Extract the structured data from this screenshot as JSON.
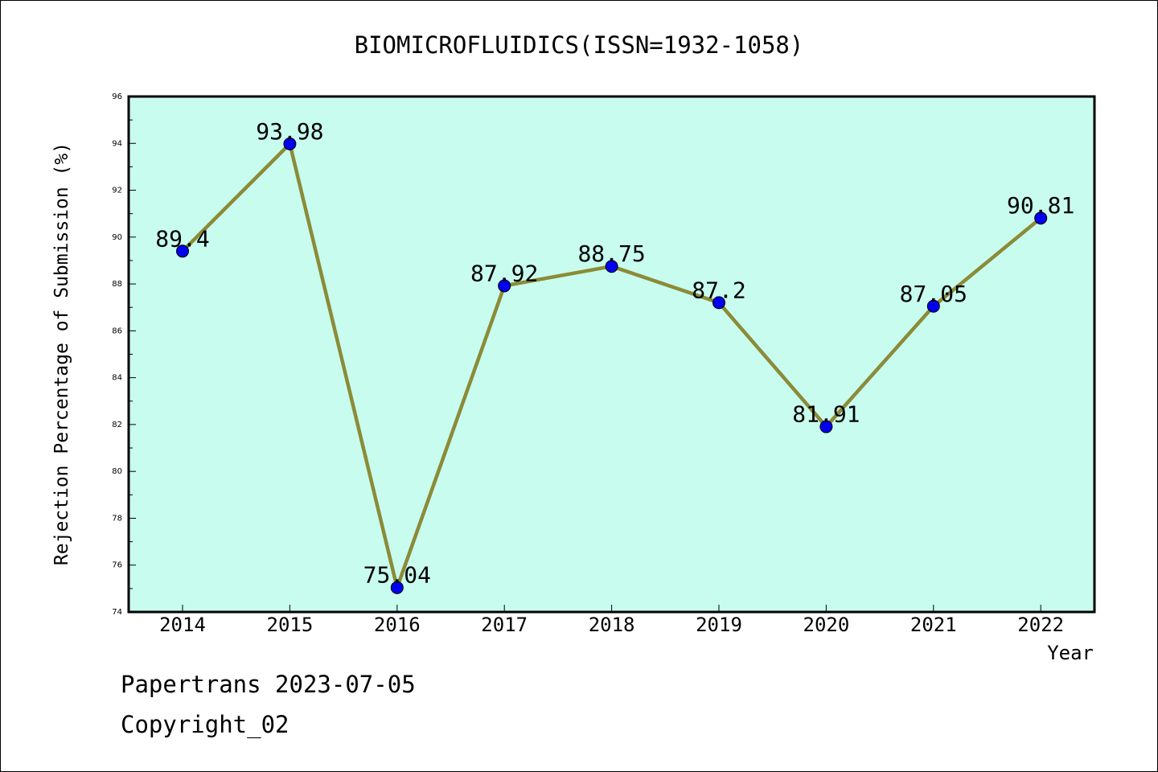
{
  "chart_data": {
    "type": "line",
    "title": "BIOMICROFLUIDICS(ISSN=1932-1058)",
    "xlabel": "Year",
    "ylabel": "Rejection Percentage of Submission (%)",
    "categories": [
      "2014",
      "2015",
      "2016",
      "2017",
      "2018",
      "2019",
      "2020",
      "2021",
      "2022"
    ],
    "series": [
      {
        "values": [
          89.4,
          93.98,
          75.04,
          87.92,
          88.75,
          87.2,
          81.91,
          87.05,
          90.81
        ],
        "labels": [
          "89.4",
          "93.98",
          "75.04",
          "87.92",
          "88.75",
          "87.2",
          "81.91",
          "87.05",
          "90.81"
        ]
      }
    ],
    "ylim": [
      74,
      96
    ],
    "yticks": [
      "74",
      "76",
      "78",
      "80",
      "82",
      "84",
      "86",
      "88",
      "90",
      "92",
      "94",
      "96"
    ],
    "grid": false,
    "colors": {
      "plot_background": "#c8fcee",
      "line": "#8b8b38",
      "marker": "#0000ee"
    }
  },
  "footer": {
    "line1": "Papertrans 2023-07-05",
    "line2": "Copyright_02"
  }
}
